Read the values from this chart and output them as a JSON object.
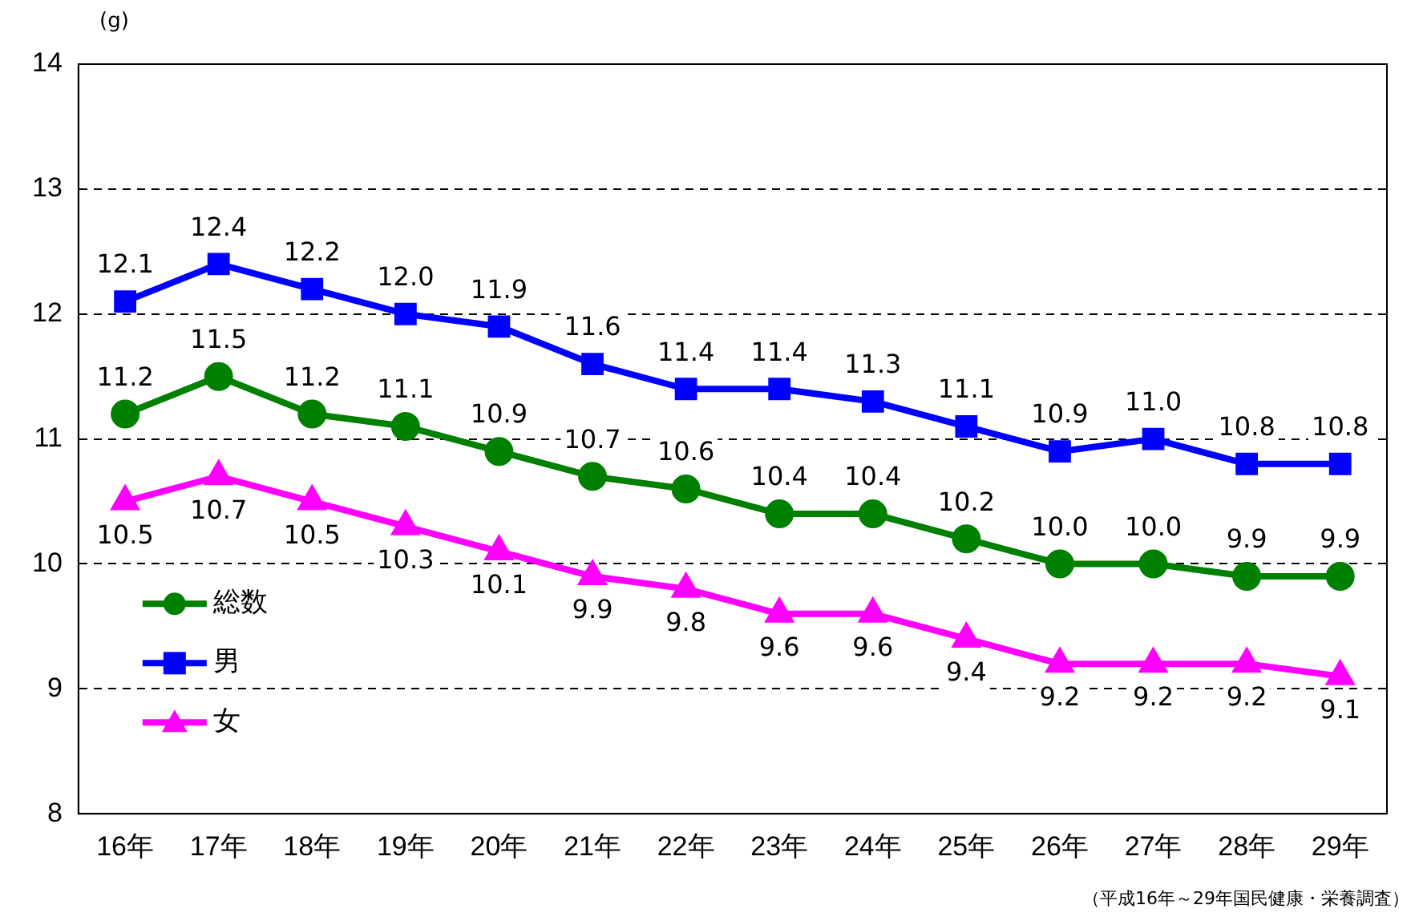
{
  "chart_data": {
    "type": "line",
    "ylabel": "(g)",
    "categories": [
      "16年",
      "17年",
      "18年",
      "19年",
      "20年",
      "21年",
      "22年",
      "23年",
      "24年",
      "25年",
      "26年",
      "27年",
      "28年",
      "29年"
    ],
    "series": [
      {
        "name": "総数",
        "color": "#008000",
        "marker": "circle",
        "values": [
          11.2,
          11.5,
          11.2,
          11.1,
          10.9,
          10.7,
          10.6,
          10.4,
          10.4,
          10.2,
          10.0,
          10.0,
          9.9,
          9.9
        ],
        "value_labels": [
          "11.2",
          "11.5",
          "11.2",
          "11.1",
          "10.9",
          "10.7",
          "10.6",
          "10.4",
          "10.4",
          "10.2",
          "10.0",
          "10.0",
          "9.9",
          "9.9"
        ]
      },
      {
        "name": "男",
        "color": "#0000ff",
        "marker": "square",
        "values": [
          12.1,
          12.4,
          12.2,
          12.0,
          11.9,
          11.6,
          11.4,
          11.4,
          11.3,
          11.1,
          10.9,
          11.0,
          10.8,
          10.8
        ],
        "value_labels": [
          "12.1",
          "12.4",
          "12.2",
          "12.0",
          "11.9",
          "11.6",
          "11.4",
          "11.4",
          "11.3",
          "11.1",
          "10.9",
          "11.0",
          "10.8",
          "10.8"
        ]
      },
      {
        "name": "女",
        "color": "#ff00ff",
        "marker": "triangle",
        "values": [
          10.5,
          10.7,
          10.5,
          10.3,
          10.1,
          9.9,
          9.8,
          9.6,
          9.6,
          9.4,
          9.2,
          9.2,
          9.2,
          9.1
        ],
        "value_labels": [
          "10.5",
          "10.7",
          "10.5",
          "10.3",
          "10.1",
          "9.9",
          "9.8",
          "9.6",
          "9.6",
          "9.4",
          "9.2",
          "9.2",
          "9.2",
          "9.1"
        ]
      }
    ],
    "ylim": [
      8,
      14
    ],
    "yticks": [
      8,
      9,
      10,
      11,
      12,
      13,
      14
    ],
    "grid": "y",
    "legend": "left",
    "line_style": "solid",
    "annotations": [
      "（平成16年～29年国民健康・栄養調査）"
    ]
  }
}
